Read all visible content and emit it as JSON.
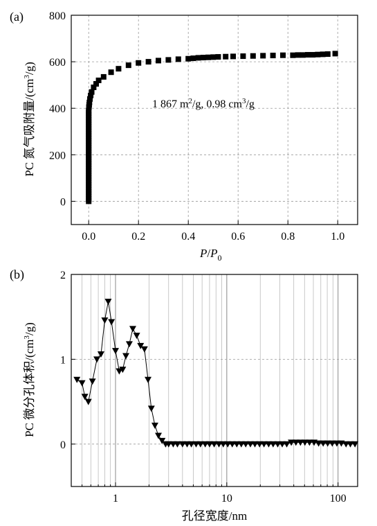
{
  "chart_data": [
    {
      "panel_label": "(a)",
      "type": "scatter",
      "ylabel": "PC 氮气吸附量/(cm³/g)",
      "ylabel_parts": {
        "main": "PC 氮气吸附量/(cm",
        "sup": "3",
        "tail": "/g)"
      },
      "xlabel_parts": {
        "p": "P",
        "slash": "/",
        "p0": "P",
        "sub": "0"
      },
      "annotation": "1 867 m²/g, 0.98 cm³/g",
      "annotation_parts": {
        "a": "1 867 m",
        "a_sup": "2",
        "b": "/g, 0.98 cm",
        "b_sup": "3",
        "c": "/g"
      },
      "xlim": [
        -0.07,
        1.08
      ],
      "ylim": [
        -100,
        800
      ],
      "x_ticks": [
        0.0,
        0.2,
        0.4,
        0.6,
        0.8,
        1.0
      ],
      "x_tick_labels": [
        "0.0",
        "0.2",
        "0.4",
        "0.6",
        "0.8",
        "1.0"
      ],
      "y_ticks": [
        0,
        200,
        400,
        600,
        800
      ],
      "y_tick_labels": [
        "0",
        "200",
        "400",
        "600",
        "800"
      ],
      "grid": true,
      "marker": "square",
      "series": [
        {
          "x": [
            0.0,
            0.0,
            0.0,
            0.0,
            0.0,
            0.0,
            0.0,
            0.0,
            0.0,
            0.0,
            0.0,
            0.0,
            0.0,
            0.0,
            0.0,
            0.0,
            0.0,
            0.0,
            0.0,
            0.0,
            0.0,
            0.0,
            0.0,
            0.0,
            0.0,
            0.0,
            0.0,
            0.0,
            0.0,
            0.0,
            0.0,
            0.0,
            0.0,
            0.0,
            0.0,
            0.0,
            0.0,
            0.0,
            0.0,
            0.0,
            0.001,
            0.002,
            0.003,
            0.005,
            0.008,
            0.012,
            0.02,
            0.03,
            0.04,
            0.06,
            0.09,
            0.12,
            0.16,
            0.2,
            0.24,
            0.28,
            0.32,
            0.36,
            0.4,
            0.42,
            0.44,
            0.46,
            0.48,
            0.5,
            0.52,
            0.55,
            0.58,
            0.62,
            0.66,
            0.7,
            0.74,
            0.78,
            0.82,
            0.84,
            0.86,
            0.88,
            0.9,
            0.92,
            0.94,
            0.96,
            0.99
          ],
          "y": [
            0,
            10,
            20,
            30,
            40,
            50,
            60,
            70,
            80,
            90,
            100,
            110,
            120,
            130,
            140,
            150,
            160,
            170,
            180,
            190,
            200,
            210,
            220,
            230,
            240,
            250,
            260,
            270,
            280,
            290,
            300,
            310,
            320,
            330,
            340,
            350,
            360,
            370,
            380,
            390,
            405,
            415,
            425,
            440,
            455,
            470,
            490,
            505,
            520,
            535,
            555,
            570,
            585,
            595,
            600,
            605,
            608,
            611,
            613,
            615,
            617,
            618,
            619,
            620,
            621,
            622,
            623,
            624,
            625,
            626,
            627,
            628,
            628,
            629,
            629,
            630,
            630,
            631,
            632,
            633,
            635
          ]
        }
      ]
    },
    {
      "panel_label": "(b)",
      "type": "line",
      "ylabel": "PC 微分孔体积/(cm³/g)",
      "ylabel_parts": {
        "main": "PC 微分孔体积/(cm",
        "sup": "3",
        "tail": "/g)"
      },
      "xlabel": "孔径宽度/nm",
      "x_scale": "log",
      "xlim": [
        0.4,
        150
      ],
      "ylim": [
        -0.5,
        2
      ],
      "x_tick_labels": [
        "1",
        "10",
        "100"
      ],
      "y_ticks": [
        0,
        1,
        2
      ],
      "y_tick_labels": [
        "0",
        "1",
        "2"
      ],
      "grid": true,
      "marker": "triangle-down",
      "series": [
        {
          "x": [
            0.45,
            0.5,
            0.53,
            0.57,
            0.62,
            0.68,
            0.74,
            0.8,
            0.86,
            0.92,
            1.0,
            1.08,
            1.16,
            1.24,
            1.33,
            1.43,
            1.55,
            1.68,
            1.82,
            1.96,
            2.1,
            2.26,
            2.43,
            2.62,
            2.82,
            3.0,
            3.3,
            3.6,
            4.0,
            4.4,
            4.8,
            5.3,
            5.8,
            6.4,
            7.0,
            7.7,
            8.5,
            9.3,
            10.2,
            11.2,
            12.3,
            13.5,
            14.8,
            16.3,
            17.9,
            19.7,
            21.6,
            23.8,
            26.1,
            28.7,
            31.5,
            34.6,
            38.0,
            41.8,
            45.9,
            50.4,
            55.4,
            60.9,
            66.9,
            73.5,
            80.7,
            88.7,
            97.5,
            107,
            118,
            129,
            142
          ],
          "y": [
            0.76,
            0.72,
            0.56,
            0.5,
            0.74,
            1.0,
            1.06,
            1.46,
            1.68,
            1.44,
            1.1,
            0.86,
            0.88,
            1.04,
            1.18,
            1.36,
            1.28,
            1.16,
            1.12,
            0.76,
            0.42,
            0.22,
            0.1,
            0.04,
            0.0,
            0.0,
            0.0,
            0.0,
            0.0,
            0.0,
            0.0,
            0.0,
            0.0,
            0.0,
            0.0,
            0.0,
            0.0,
            0.0,
            0.0,
            0.0,
            0.0,
            0.0,
            0.0,
            0.0,
            0.0,
            0.0,
            0.0,
            0.0,
            0.0,
            0.0,
            0.0,
            0.0,
            0.02,
            0.02,
            0.02,
            0.02,
            0.02,
            0.02,
            0.01,
            0.01,
            0.01,
            0.01,
            0.01,
            0.01,
            0.0,
            0.0,
            0.0
          ]
        }
      ]
    }
  ]
}
